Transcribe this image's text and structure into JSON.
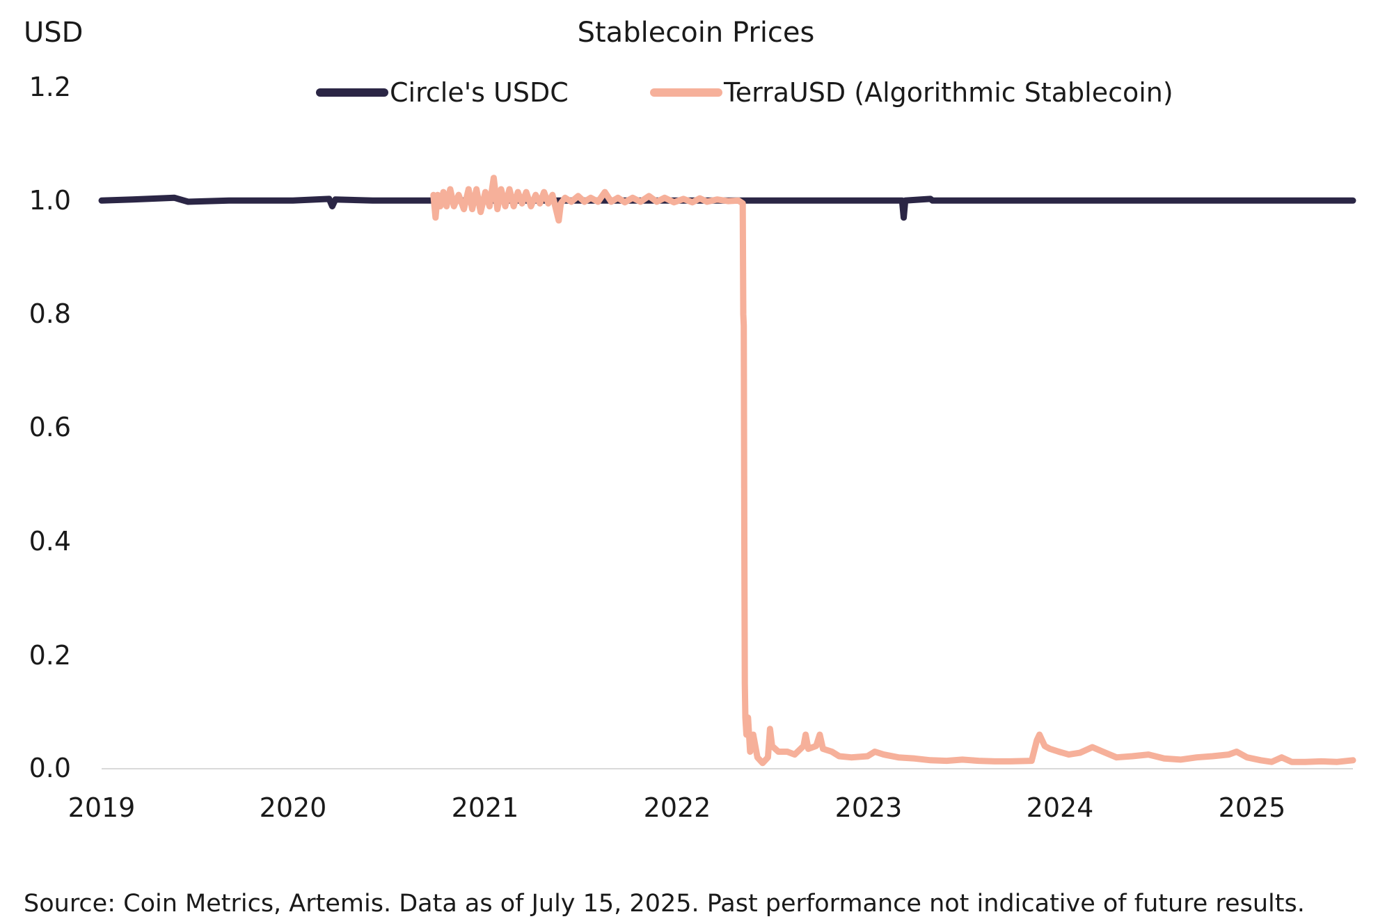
{
  "chart_data": {
    "type": "line",
    "title": "Stablecoin Prices",
    "ylabel": "USD",
    "xlabel": "",
    "ylim": [
      0,
      1.2
    ],
    "xlim": [
      "2019-01-01",
      "2025-07-15"
    ],
    "y_ticks": [
      "0.0",
      "0.2",
      "0.4",
      "0.6",
      "0.8",
      "1.0",
      "1.2"
    ],
    "x_ticks": [
      "2019",
      "2020",
      "2021",
      "2022",
      "2023",
      "2024",
      "2025"
    ],
    "grid": false,
    "legend_position": "top-center",
    "series": [
      {
        "name": "Circle's USDC",
        "color": "#2b2645",
        "points": [
          [
            "2019-01-01",
            1.0
          ],
          [
            "2019-03-01",
            1.002
          ],
          [
            "2019-05-20",
            1.005
          ],
          [
            "2019-06-15",
            0.998
          ],
          [
            "2019-09-01",
            1.0
          ],
          [
            "2020-01-01",
            1.0
          ],
          [
            "2020-03-10",
            1.003
          ],
          [
            "2020-03-16",
            0.99
          ],
          [
            "2020-03-22",
            1.002
          ],
          [
            "2020-06-01",
            1.0
          ],
          [
            "2021-01-01",
            1.0
          ],
          [
            "2021-06-01",
            1.0
          ],
          [
            "2021-12-01",
            1.0
          ],
          [
            "2022-05-12",
            1.0
          ],
          [
            "2022-06-01",
            1.0
          ],
          [
            "2022-12-01",
            1.0
          ],
          [
            "2023-03-08",
            1.0
          ],
          [
            "2023-03-11",
            0.97
          ],
          [
            "2023-03-14",
            1.0
          ],
          [
            "2023-05-01",
            1.003
          ],
          [
            "2023-05-05",
            1.0
          ],
          [
            "2024-01-01",
            1.0
          ],
          [
            "2024-06-01",
            1.0
          ],
          [
            "2025-01-01",
            1.0
          ],
          [
            "2025-07-15",
            1.0
          ]
        ]
      },
      {
        "name": "TerraUSD (Algorithmic Stablecoin)",
        "color": "#f6b09a",
        "points": [
          [
            "2020-09-25",
            1.01
          ],
          [
            "2020-09-29",
            0.97
          ],
          [
            "2020-10-03",
            1.01
          ],
          [
            "2020-10-08",
            0.99
          ],
          [
            "2020-10-14",
            1.015
          ],
          [
            "2020-10-20",
            0.99
          ],
          [
            "2020-10-27",
            1.02
          ],
          [
            "2020-11-03",
            0.99
          ],
          [
            "2020-11-12",
            1.01
          ],
          [
            "2020-11-22",
            0.985
          ],
          [
            "2020-12-01",
            1.02
          ],
          [
            "2020-12-08",
            0.985
          ],
          [
            "2020-12-16",
            1.02
          ],
          [
            "2020-12-24",
            0.98
          ],
          [
            "2021-01-02",
            1.015
          ],
          [
            "2021-01-10",
            0.99
          ],
          [
            "2021-01-18",
            1.04
          ],
          [
            "2021-01-25",
            0.985
          ],
          [
            "2021-02-01",
            1.02
          ],
          [
            "2021-02-09",
            0.99
          ],
          [
            "2021-02-17",
            1.02
          ],
          [
            "2021-02-25",
            0.99
          ],
          [
            "2021-03-05",
            1.015
          ],
          [
            "2021-03-13",
            0.995
          ],
          [
            "2021-03-21",
            1.015
          ],
          [
            "2021-03-30",
            0.99
          ],
          [
            "2021-04-08",
            1.01
          ],
          [
            "2021-04-16",
            0.995
          ],
          [
            "2021-04-24",
            1.015
          ],
          [
            "2021-05-02",
            0.995
          ],
          [
            "2021-05-10",
            1.01
          ],
          [
            "2021-05-18",
            0.98
          ],
          [
            "2021-05-22",
            0.965
          ],
          [
            "2021-05-26",
            0.995
          ],
          [
            "2021-06-03",
            1.005
          ],
          [
            "2021-06-15",
            0.998
          ],
          [
            "2021-06-28",
            1.008
          ],
          [
            "2021-07-10",
            0.998
          ],
          [
            "2021-07-22",
            1.005
          ],
          [
            "2021-08-05",
            0.998
          ],
          [
            "2021-08-18",
            1.015
          ],
          [
            "2021-08-30",
            0.998
          ],
          [
            "2021-09-12",
            1.005
          ],
          [
            "2021-09-25",
            0.997
          ],
          [
            "2021-10-10",
            1.005
          ],
          [
            "2021-10-25",
            0.998
          ],
          [
            "2021-11-10",
            1.008
          ],
          [
            "2021-11-25",
            0.998
          ],
          [
            "2021-12-10",
            1.005
          ],
          [
            "2021-12-28",
            0.997
          ],
          [
            "2022-01-15",
            1.003
          ],
          [
            "2022-02-01",
            0.997
          ],
          [
            "2022-02-15",
            1.004
          ],
          [
            "2022-03-01",
            0.998
          ],
          [
            "2022-03-20",
            1.002
          ],
          [
            "2022-04-10",
            0.999
          ],
          [
            "2022-04-30",
            1.0
          ],
          [
            "2022-05-08",
            0.995
          ],
          [
            "2022-05-09",
            0.8
          ],
          [
            "2022-05-10",
            0.78
          ],
          [
            "2022-05-11",
            0.4
          ],
          [
            "2022-05-12",
            0.15
          ],
          [
            "2022-05-13",
            0.09
          ],
          [
            "2022-05-15",
            0.06
          ],
          [
            "2022-05-18",
            0.09
          ],
          [
            "2022-05-22",
            0.03
          ],
          [
            "2022-05-28",
            0.06
          ],
          [
            "2022-06-05",
            0.02
          ],
          [
            "2022-06-15",
            0.01
          ],
          [
            "2022-06-25",
            0.02
          ],
          [
            "2022-06-29",
            0.07
          ],
          [
            "2022-07-03",
            0.04
          ],
          [
            "2022-07-15",
            0.03
          ],
          [
            "2022-08-01",
            0.03
          ],
          [
            "2022-08-15",
            0.025
          ],
          [
            "2022-09-01",
            0.04
          ],
          [
            "2022-09-05",
            0.06
          ],
          [
            "2022-09-10",
            0.035
          ],
          [
            "2022-09-25",
            0.04
          ],
          [
            "2022-10-02",
            0.06
          ],
          [
            "2022-10-08",
            0.035
          ],
          [
            "2022-10-25",
            0.03
          ],
          [
            "2022-11-08",
            0.022
          ],
          [
            "2022-12-01",
            0.02
          ],
          [
            "2023-01-01",
            0.022
          ],
          [
            "2023-01-15",
            0.03
          ],
          [
            "2023-02-01",
            0.025
          ],
          [
            "2023-03-01",
            0.02
          ],
          [
            "2023-04-01",
            0.018
          ],
          [
            "2023-05-01",
            0.015
          ],
          [
            "2023-06-01",
            0.014
          ],
          [
            "2023-07-01",
            0.016
          ],
          [
            "2023-08-01",
            0.014
          ],
          [
            "2023-09-01",
            0.013
          ],
          [
            "2023-10-01",
            0.013
          ],
          [
            "2023-11-10",
            0.014
          ],
          [
            "2023-11-20",
            0.05
          ],
          [
            "2023-11-25",
            0.06
          ],
          [
            "2023-12-05",
            0.04
          ],
          [
            "2023-12-15",
            0.035
          ],
          [
            "2024-01-01",
            0.03
          ],
          [
            "2024-01-20",
            0.025
          ],
          [
            "2024-02-10",
            0.028
          ],
          [
            "2024-03-05",
            0.038
          ],
          [
            "2024-03-25",
            0.03
          ],
          [
            "2024-04-20",
            0.02
          ],
          [
            "2024-05-20",
            0.022
          ],
          [
            "2024-06-20",
            0.025
          ],
          [
            "2024-07-20",
            0.018
          ],
          [
            "2024-08-20",
            0.016
          ],
          [
            "2024-09-20",
            0.02
          ],
          [
            "2024-10-20",
            0.022
          ],
          [
            "2024-11-20",
            0.025
          ],
          [
            "2024-12-05",
            0.03
          ],
          [
            "2024-12-25",
            0.02
          ],
          [
            "2025-01-20",
            0.015
          ],
          [
            "2025-02-10",
            0.012
          ],
          [
            "2025-03-01",
            0.02
          ],
          [
            "2025-03-20",
            0.012
          ],
          [
            "2025-04-15",
            0.012
          ],
          [
            "2025-05-15",
            0.013
          ],
          [
            "2025-06-15",
            0.012
          ],
          [
            "2025-07-15",
            0.015
          ]
        ]
      }
    ]
  },
  "footer": {
    "source": "Source: Coin Metrics, Artemis. Data as of July 15, 2025. Past performance not indicative of future results."
  }
}
